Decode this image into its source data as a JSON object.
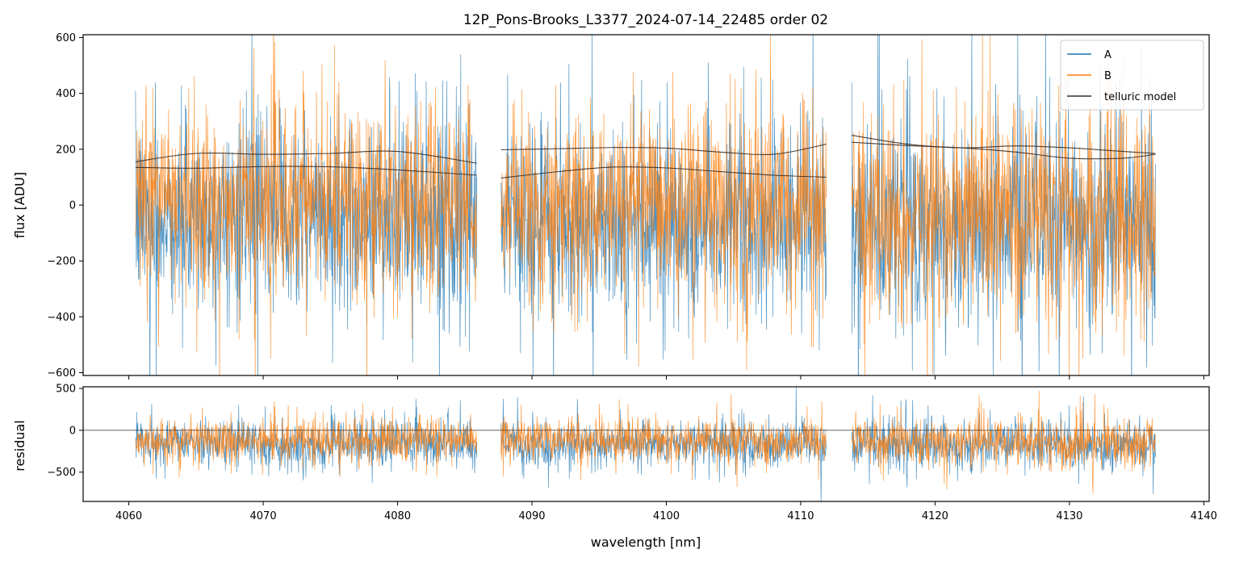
{
  "title": "12P_Pons-Brooks_L3377_2024-07-14_22485  order 02",
  "chart_data": [
    {
      "panel": "flux",
      "type": "line",
      "xlabel": "",
      "ylabel": "flux [ADU]",
      "xlim": [
        4056.6,
        4140.4
      ],
      "ylim": [
        -610,
        610
      ],
      "xticks": [
        4060,
        4070,
        4080,
        4090,
        4100,
        4110,
        4120,
        4130,
        4140
      ],
      "yticks": [
        -600,
        -400,
        -200,
        0,
        200,
        400,
        600
      ],
      "ytick_labels": [
        "−600",
        "−400",
        "−200",
        "0",
        "200",
        "400",
        "600"
      ],
      "legend": {
        "placement": "top-right",
        "entries": [
          {
            "label": "A",
            "color": "#1f77b4"
          },
          {
            "label": "B",
            "color": "#ff7f0e"
          },
          {
            "label": "telluric model",
            "color": "#3a2e26"
          }
        ]
      },
      "segments": [
        {
          "x_start": 4060.5,
          "x_end": 4085.9,
          "A_center": -40,
          "A_spread": 260,
          "B_center": 20,
          "B_spread": 270
        },
        {
          "x_start": 4087.7,
          "x_end": 4111.9,
          "A_center": -60,
          "A_spread": 260,
          "B_center": 0,
          "B_spread": 260
        },
        {
          "x_start": 4113.8,
          "x_end": 4136.4,
          "A_center": -60,
          "A_spread": 290,
          "B_center": -40,
          "B_spread": 300
        }
      ],
      "series": [
        {
          "name": "telluric model",
          "segment": 0,
          "x": [
            4060.5,
            4065,
            4070,
            4075,
            4080,
            4085.9
          ],
          "y": [
            155,
            185,
            182,
            185,
            192,
            150
          ]
        },
        {
          "name": "telluric model",
          "segment": 0,
          "x": [
            4060.5,
            4065,
            4070,
            4075,
            4080,
            4085.9
          ],
          "y": [
            135,
            132,
            138,
            137,
            126,
            107
          ]
        },
        {
          "name": "telluric model",
          "segment": 1,
          "x": [
            4087.7,
            4092,
            4096,
            4100,
            4104,
            4108,
            4111.9
          ],
          "y": [
            198,
            202,
            206,
            204,
            190,
            182,
            218
          ]
        },
        {
          "name": "telluric model",
          "segment": 1,
          "x": [
            4087.7,
            4092,
            4096,
            4100,
            4104,
            4108,
            4111.9
          ],
          "y": [
            97,
            120,
            136,
            133,
            120,
            107,
            100
          ]
        },
        {
          "name": "telluric model",
          "segment": 2,
          "x": [
            4113.8,
            4118,
            4122,
            4126,
            4130,
            4134,
            4136.4
          ],
          "y": [
            250,
            218,
            205,
            212,
            205,
            192,
            185
          ]
        },
        {
          "name": "telluric model",
          "segment": 2,
          "x": [
            4113.8,
            4118,
            4122,
            4126,
            4130,
            4134,
            4136.4
          ],
          "y": [
            225,
            213,
            205,
            190,
            168,
            168,
            182
          ]
        }
      ]
    },
    {
      "panel": "residual",
      "type": "line",
      "xlabel": "wavelength [nm]",
      "ylabel": "residual",
      "xlim": [
        4056.6,
        4140.4
      ],
      "ylim": [
        -850,
        520
      ],
      "xticks": [
        4060,
        4070,
        4080,
        4090,
        4100,
        4110,
        4120,
        4130,
        4140
      ],
      "xtick_labels": [
        "4060",
        "4070",
        "4080",
        "4090",
        "4100",
        "4110",
        "4120",
        "4130",
        "4140"
      ],
      "yticks": [
        -500,
        0,
        500
      ],
      "ytick_labels": [
        "−500",
        "0",
        "500"
      ],
      "zero_line": 0,
      "segments": [
        {
          "x_start": 4060.5,
          "x_end": 4085.9,
          "A_center": -150,
          "A_spread": 210,
          "B_center": -110,
          "B_spread": 200
        },
        {
          "x_start": 4087.7,
          "x_end": 4111.9,
          "A_center": -160,
          "A_spread": 210,
          "B_center": -120,
          "B_spread": 200
        },
        {
          "x_start": 4113.8,
          "x_end": 4136.4,
          "A_center": -170,
          "A_spread": 240,
          "B_center": -140,
          "B_spread": 230
        }
      ]
    }
  ]
}
